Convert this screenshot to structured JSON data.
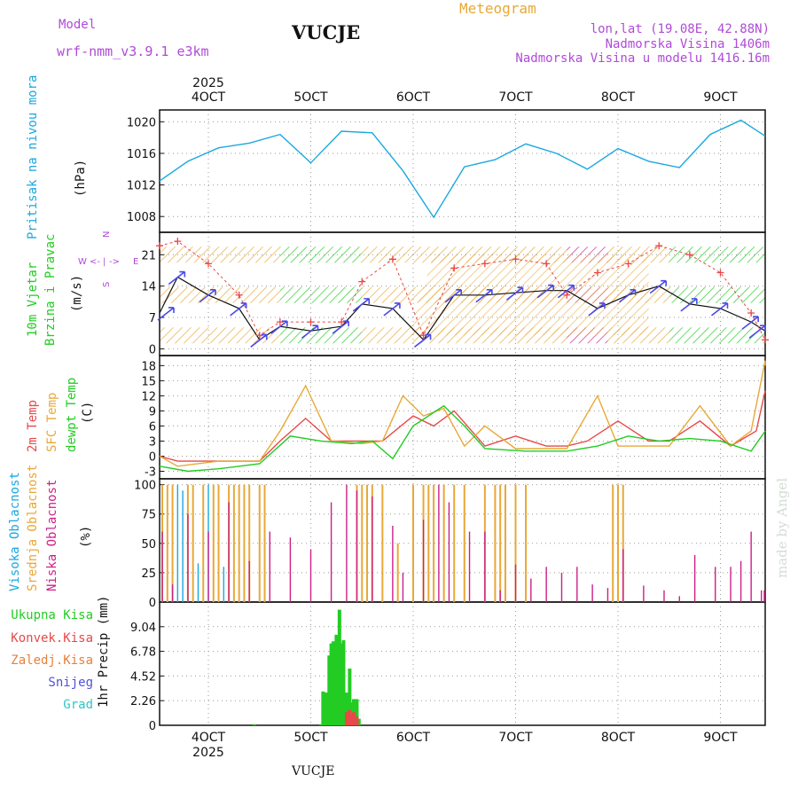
{
  "header": {
    "model_label": "Model",
    "model_name": "wrf-nmm_v3.9.1 e3km",
    "title": "VUCJE",
    "meteogram_label": "Meteogram",
    "coords": "lon,lat (19.08E, 42.88N)",
    "altitude": "Nadmorska Visina 1406m",
    "model_altitude": "Nadmorska Visina u modelu 1416.16m",
    "credit": "made by Angel",
    "footer_station": "VUCJE",
    "year": "2025",
    "colors": {
      "purple": "#b04ad8",
      "orange": "#e8a838",
      "cyan": "#1aa8e0",
      "green": "#22cc22",
      "red": "#e84848",
      "magenta": "#cc1f88"
    }
  },
  "chart_data": [
    {
      "type": "line",
      "name": "pressure",
      "title": "Pritisak na nivou mora",
      "unit_label": "(hPa)",
      "x_ticks": [
        "4OCT",
        "5OCT",
        "6OCT",
        "7OCT",
        "8OCT",
        "9OCT"
      ],
      "ylim": [
        1006.0,
        1021.5
      ],
      "y_ticks": [
        1008,
        1012,
        1016,
        1020
      ],
      "series": [
        {
          "name": "Pritisak na nivou mora",
          "color": "#1aa8e0",
          "x": [
            0,
            0.3,
            0.6,
            0.9,
            1.2,
            1.5,
            1.8,
            2.1,
            2.4,
            2.7,
            3.0,
            3.3,
            3.6,
            3.9,
            4.2,
            4.5,
            4.8,
            5.1,
            5.4,
            5.7,
            6.0
          ],
          "values": [
            1012.5,
            1015.0,
            1016.7,
            1017.3,
            1018.4,
            1014.8,
            1018.8,
            1018.6,
            1013.8,
            1007.9,
            1014.3,
            1015.2,
            1017.2,
            1016.0,
            1014.0,
            1016.6,
            1015.0,
            1014.2,
            1018.4,
            1020.2,
            1018.2
          ]
        }
      ]
    },
    {
      "type": "line",
      "name": "wind",
      "title": "10m Vjetar",
      "title2": "Brzina i Pravac",
      "unit_label": "(m/s)",
      "direction_labels": [
        "W",
        "<-",
        "|",
        "->",
        "E",
        "S",
        "N"
      ],
      "ylim": [
        -1.5,
        26
      ],
      "y_ticks": [
        0,
        7,
        14,
        21
      ],
      "band_levels": [
        3,
        12,
        21
      ],
      "series": [
        {
          "name": "brzina",
          "color": "#111111",
          "x": [
            0,
            0.2,
            0.5,
            0.8,
            1.0,
            1.2,
            1.5,
            1.8,
            2.0,
            2.3,
            2.6,
            2.9,
            3.2,
            3.5,
            3.8,
            4.0,
            4.3,
            4.6,
            4.9,
            5.2,
            5.5,
            5.8,
            6.0
          ],
          "values": [
            8,
            16,
            12,
            9,
            2,
            5,
            4,
            5,
            10,
            9,
            2,
            12,
            12,
            12.5,
            13,
            13,
            9,
            12,
            14,
            10,
            9,
            6,
            4
          ]
        },
        {
          "name": "udari",
          "color": "#e84848",
          "x": [
            0,
            0.2,
            0.5,
            0.8,
            1.0,
            1.2,
            1.5,
            1.8,
            2.0,
            2.3,
            2.6,
            2.9,
            3.2,
            3.5,
            3.8,
            4.0,
            4.3,
            4.6,
            4.9,
            5.2,
            5.5,
            5.8,
            6.0
          ],
          "values": [
            23,
            24,
            19,
            12,
            3,
            6,
            6,
            6,
            15,
            20,
            3,
            18,
            19,
            20,
            19,
            12,
            17,
            19,
            23,
            21,
            17,
            8,
            2
          ]
        }
      ]
    },
    {
      "type": "line",
      "name": "temperature",
      "titles": [
        "2m Temp",
        "SFC Temp",
        "dewpt Temp"
      ],
      "unit_label": "(C)",
      "ylim": [
        -4.5,
        20
      ],
      "y_ticks": [
        -3,
        0,
        3,
        6,
        9,
        12,
        15,
        18
      ],
      "series": [
        {
          "name": "2m Temp",
          "color": "#e84848",
          "x": [
            0,
            0.2,
            0.6,
            1.0,
            1.2,
            1.45,
            1.7,
            2.0,
            2.2,
            2.5,
            2.7,
            2.9,
            3.2,
            3.5,
            3.8,
            4.0,
            4.2,
            4.5,
            4.8,
            5.0,
            5.3,
            5.6,
            5.85,
            6.0
          ],
          "values": [
            0,
            -1,
            -1,
            -1,
            3,
            7.5,
            3,
            3,
            3,
            8,
            6,
            9,
            2,
            4,
            2,
            2,
            3,
            7,
            3,
            3,
            7,
            2,
            5,
            13
          ]
        },
        {
          "name": "SFC Temp",
          "color": "#e8a838",
          "x": [
            0,
            0.2,
            0.6,
            1.0,
            1.2,
            1.45,
            1.7,
            2.0,
            2.2,
            2.4,
            2.6,
            2.8,
            3.0,
            3.2,
            3.5,
            3.8,
            4.0,
            4.3,
            4.5,
            4.8,
            5.0,
            5.3,
            5.6,
            5.8,
            5.95,
            6.0
          ],
          "values": [
            0,
            -2,
            -1,
            -1,
            5,
            14,
            3,
            2.5,
            3,
            12,
            8,
            9.5,
            2,
            6,
            1.5,
            1.5,
            1.5,
            12,
            2,
            2,
            2,
            10,
            2,
            5,
            19,
            18
          ]
        },
        {
          "name": "dewpt Temp",
          "color": "#22cc22",
          "x": [
            0,
            0.3,
            0.6,
            1.0,
            1.3,
            1.6,
            1.9,
            2.1,
            2.3,
            2.5,
            2.8,
            3.0,
            3.2,
            3.6,
            4.0,
            4.3,
            4.6,
            4.9,
            5.2,
            5.5,
            5.8,
            6.0
          ],
          "values": [
            -2,
            -3,
            -2.5,
            -1.5,
            4,
            3,
            2.5,
            3,
            -0.5,
            6,
            10,
            6,
            1.5,
            1,
            1,
            2,
            4,
            3,
            3.5,
            3,
            1,
            5
          ]
        }
      ]
    },
    {
      "type": "bar",
      "name": "clouds",
      "titles": [
        "Visoka Oblacnost",
        "Srednja Oblacnost",
        "Niska Oblacnost"
      ],
      "unit_label": "(%)",
      "ylim": [
        0,
        105
      ],
      "y_ticks": [
        0,
        25,
        50,
        75,
        100
      ],
      "series": [
        {
          "name": "Visoka Oblacnost",
          "color": "#1aa8e0",
          "x": [
            0.2,
            0.25,
            0.3,
            0.4,
            0.5,
            0.55,
            0.65
          ],
          "values": [
            100,
            95,
            60,
            33,
            100,
            35,
            30
          ]
        },
        {
          "name": "Srednja Oblacnost",
          "color": "#e8a838",
          "x": [
            0.05,
            0.1,
            0.15,
            0.3,
            0.35,
            0.45,
            0.55,
            0.6,
            0.7,
            0.75,
            0.8,
            0.85,
            0.9,
            1.0,
            1.05,
            1.95,
            2.0,
            2.05,
            2.1,
            2.2,
            2.35,
            2.5,
            2.6,
            2.65,
            2.7,
            2.8,
            2.9,
            3.0,
            3.2,
            3.3,
            3.35,
            3.4,
            3.5,
            3.6,
            4.45,
            4.5,
            4.55
          ],
          "values": [
            100,
            100,
            100,
            100,
            100,
            100,
            100,
            100,
            100,
            100,
            100,
            100,
            100,
            100,
            100,
            100,
            100,
            100,
            100,
            100,
            50,
            100,
            100,
            100,
            100,
            100,
            100,
            100,
            100,
            100,
            100,
            100,
            100,
            100,
            100,
            100,
            100
          ]
        },
        {
          "name": "Niska Oblacnost",
          "color": "#cc1f88",
          "x": [
            0.05,
            0.15,
            0.3,
            0.5,
            0.7,
            0.9,
            1.1,
            1.3,
            1.5,
            1.7,
            1.85,
            1.95,
            2.1,
            2.3,
            2.4,
            2.6,
            2.75,
            2.85,
            3.05,
            3.2,
            3.35,
            3.5,
            3.65,
            3.8,
            3.95,
            4.1,
            4.25,
            4.4,
            4.55,
            4.75,
            4.95,
            5.1,
            5.25,
            5.45,
            5.6,
            5.7,
            5.8,
            5.9,
            6.0
          ],
          "values": [
            60,
            15,
            75,
            60,
            85,
            35,
            60,
            55,
            45,
            85,
            100,
            95,
            90,
            65,
            25,
            70,
            100,
            85,
            60,
            60,
            10,
            32,
            20,
            30,
            25,
            30,
            15,
            12,
            45,
            14,
            10,
            5,
            40,
            30,
            30,
            35,
            60,
            10,
            10
          ]
        }
      ]
    },
    {
      "type": "bar",
      "name": "precipitation",
      "legend": [
        "Ukupna Kisa",
        "Konvek.Kisa",
        "Zaledj.Kisa",
        "Snijeg",
        "Grad"
      ],
      "legend_colors": [
        "#22cc22",
        "#e84848",
        "#e8a838",
        "#5050e0",
        "#2ac8c8"
      ],
      "ylabel": "1hr Precip (mm)",
      "ylim": [
        0,
        11.3
      ],
      "y_ticks": [
        0,
        2.26,
        4.52,
        6.78,
        9.04
      ],
      "x_ticks": [
        "4OCT",
        "5OCT",
        "6OCT",
        "7OCT",
        "8OCT",
        "9OCT"
      ],
      "x_year": "2025",
      "series": [
        {
          "name": "Ukupna Kisa",
          "color": "#22cc22",
          "x": [
            0.95,
            1.6,
            1.62,
            1.65,
            1.68,
            1.7,
            1.72,
            1.75,
            1.78,
            1.8,
            1.82,
            1.85,
            1.88,
            1.9,
            1.92,
            1.95,
            1.97
          ],
          "values": [
            0.1,
            0.1,
            3.1,
            3.0,
            6.4,
            7.5,
            7.7,
            8.3,
            10.6,
            7.5,
            7.8,
            3.0,
            5.2,
            2.1,
            2.4,
            2.4,
            0.6
          ]
        },
        {
          "name": "Konvek.Kisa",
          "color": "#e84848",
          "x": [
            1.85,
            1.88,
            1.9,
            1.92,
            1.95
          ],
          "values": [
            1.2,
            1.4,
            1.0,
            1.2,
            0.8
          ]
        }
      ]
    }
  ]
}
